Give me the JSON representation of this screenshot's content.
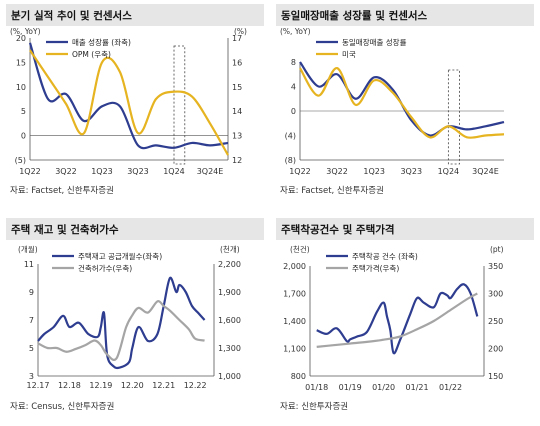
{
  "colors": {
    "navy": "#2e3d8f",
    "gold": "#e6b421",
    "gray": "#a5a5a5"
  },
  "chart_data": [
    {
      "type": "line",
      "title": "분기 실적 추이 및 컨센서스",
      "left_unit": "(%, YoY)",
      "right_unit": "(%)",
      "yticks_left": [
        "20",
        "15",
        "10",
        "5",
        "0",
        "(5)"
      ],
      "yticks_right": [
        "17",
        "16",
        "15",
        "14",
        "13",
        "12"
      ],
      "ylim_left": [
        -5,
        20
      ],
      "ylim_right": [
        12,
        17
      ],
      "xticks": [
        "1Q22",
        "3Q22",
        "1Q23",
        "3Q23",
        "1Q24",
        "3Q24E"
      ],
      "highlight": "1Q24",
      "series": [
        {
          "name": "매출 성장률 (좌축)",
          "axis": "left",
          "color": "#2e3d8f",
          "x": [
            0,
            1,
            2,
            3,
            4,
            5,
            6,
            7,
            8,
            9,
            10,
            11
          ],
          "values": [
            19,
            7.5,
            8.5,
            3,
            6,
            6,
            -2,
            -2,
            -2.5,
            -1.5,
            -2,
            -1.5
          ]
        },
        {
          "name": "OPM (우축)",
          "axis": "right",
          "color": "#e6b421",
          "x": [
            0,
            1,
            2,
            3,
            4,
            5,
            6,
            7,
            8,
            9,
            10,
            11
          ],
          "values": [
            16.5,
            15.4,
            14.3,
            13.1,
            16,
            15.6,
            13.1,
            14.5,
            14.8,
            14.6,
            13.5,
            12.2
          ]
        }
      ],
      "source": "자료: Factset, 신한투자증권"
    },
    {
      "type": "line",
      "title": "동일매장매출 성장률 및 컨센서스",
      "left_unit": "(%, YoY)",
      "yticks_left": [
        "8",
        "4",
        "0",
        "(4)",
        "(8)"
      ],
      "ylim_left": [
        -8,
        8
      ],
      "xticks": [
        "1Q22",
        "3Q22",
        "1Q23",
        "3Q23",
        "1Q24",
        "3Q24E"
      ],
      "highlight": "1Q24",
      "series": [
        {
          "name": "동일매장매출 성장률",
          "axis": "left",
          "color": "#2e3d8f",
          "x": [
            0,
            1,
            2,
            3,
            4,
            5,
            6,
            7,
            8,
            9,
            10,
            11
          ],
          "values": [
            8,
            4,
            6,
            2,
            5.5,
            3.5,
            -1.5,
            -4,
            -2.5,
            -3,
            -2.5,
            -1.8
          ]
        },
        {
          "name": "미국",
          "axis": "left",
          "color": "#e6b421",
          "x": [
            0,
            1,
            2,
            3,
            4,
            5,
            6,
            7,
            8,
            9,
            10,
            11
          ],
          "values": [
            7,
            2.5,
            7,
            1,
            5,
            3,
            -1,
            -4.3,
            -2.5,
            -4.3,
            -4,
            -3.8
          ]
        }
      ],
      "source": "자료: Factset, 신한투자증권"
    },
    {
      "type": "line",
      "title": "주택 재고 및 건축허가수",
      "left_unit": "(개월)",
      "right_unit": "(천개)",
      "yticks_left": [
        "11",
        "9",
        "7",
        "5",
        "3"
      ],
      "yticks_right": [
        "2,200",
        "1,900",
        "1,600",
        "1,300",
        "1,000"
      ],
      "ylim_left": [
        3,
        11
      ],
      "ylim_right": [
        1000,
        2200
      ],
      "xticks": [
        "12.17",
        "12.18",
        "12.19",
        "12.20",
        "12.21",
        "12.22"
      ],
      "series": [
        {
          "name": "주택재고 공급개월수(좌축)",
          "axis": "left",
          "color": "#2e3d8f",
          "x": [
            0,
            0.2,
            0.5,
            0.8,
            1.0,
            1.3,
            1.6,
            1.9,
            2.0,
            2.1,
            2.2,
            2.4,
            2.6,
            2.9,
            3.0,
            3.2,
            3.5,
            3.8,
            4.0,
            4.2,
            4.4,
            4.5,
            4.7,
            4.9,
            5.1,
            5.3
          ],
          "values": [
            5.5,
            6.0,
            6.5,
            7.3,
            6.5,
            6.8,
            6.0,
            5.8,
            6.5,
            7.5,
            4.5,
            3.7,
            3.6,
            4.0,
            5.0,
            6.5,
            5.5,
            6.0,
            8.0,
            10.0,
            9.0,
            9.5,
            9.0,
            8.0,
            7.5,
            7.0
          ]
        },
        {
          "name": "건축허가수(우축)",
          "axis": "right",
          "color": "#a5a5a5",
          "x": [
            0,
            0.3,
            0.6,
            0.9,
            1.2,
            1.5,
            1.8,
            2.0,
            2.2,
            2.5,
            2.8,
            3.0,
            3.2,
            3.5,
            3.8,
            4.0,
            4.2,
            4.5,
            4.8,
            5.0,
            5.3
          ],
          "values": [
            1350,
            1300,
            1300,
            1260,
            1290,
            1330,
            1380,
            1330,
            1230,
            1190,
            1520,
            1650,
            1730,
            1680,
            1800,
            1750,
            1700,
            1600,
            1500,
            1400,
            1380
          ]
        }
      ],
      "source": "자료: Census, 신한투자증권"
    },
    {
      "type": "line",
      "title": "주택착공건수 및 주택가격",
      "left_unit": "(천건)",
      "right_unit": "(pt)",
      "yticks_left": [
        "2,000",
        "1,700",
        "1,400",
        "1,100",
        "800"
      ],
      "yticks_right": [
        "350",
        "300",
        "250",
        "200",
        "150"
      ],
      "ylim_left": [
        800,
        2000
      ],
      "ylim_right": [
        150,
        350
      ],
      "xticks": [
        "01/18",
        "01/19",
        "01/20",
        "01/21",
        "01/22"
      ],
      "series": [
        {
          "name": "주택착공 건수 (좌축)",
          "axis": "left",
          "color": "#2e3d8f",
          "x": [
            0,
            0.3,
            0.6,
            0.9,
            1.0,
            1.2,
            1.5,
            1.8,
            2.0,
            2.1,
            2.2,
            2.3,
            2.5,
            2.8,
            3.0,
            3.2,
            3.5,
            3.7,
            3.9,
            4.0,
            4.2,
            4.4,
            4.6,
            4.8
          ],
          "values": [
            1300,
            1260,
            1320,
            1180,
            1200,
            1230,
            1280,
            1500,
            1600,
            1450,
            1300,
            1050,
            1200,
            1480,
            1650,
            1600,
            1550,
            1700,
            1680,
            1650,
            1750,
            1800,
            1700,
            1450
          ]
        },
        {
          "name": "주택가격(우축)",
          "axis": "right",
          "color": "#a5a5a5",
          "x": [
            0,
            0.5,
            1.0,
            1.5,
            2.0,
            2.5,
            3.0,
            3.5,
            4.0,
            4.5,
            4.8
          ],
          "values": [
            203,
            206,
            209,
            212,
            216,
            222,
            235,
            250,
            270,
            290,
            300
          ]
        }
      ],
      "source": "자료: 신한투자증권"
    }
  ]
}
